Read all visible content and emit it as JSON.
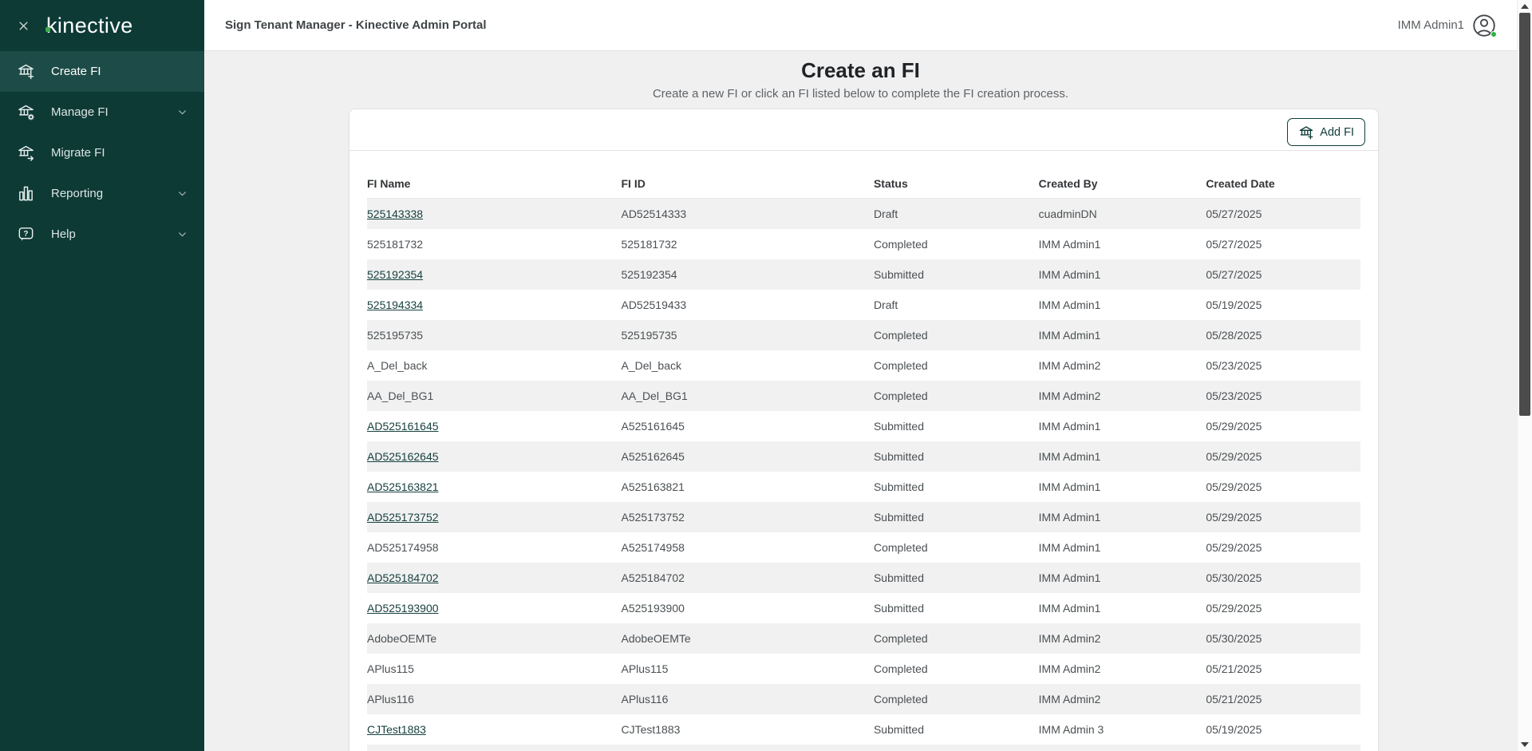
{
  "colors": {
    "sidebar_bg": "#0e3a36",
    "sidebar_active_bg": "#1d4b47",
    "accent_green": "#3dae4a",
    "presence_green": "#2fb344",
    "button_teal": "#0f3d3a",
    "link_color": "#17413e",
    "row_alt_bg": "#f1f1f1"
  },
  "sidebar": {
    "logo_text": "kinective",
    "close_icon": "close-icon",
    "items": [
      {
        "label": "Create FI",
        "icon": "bank-plus-icon",
        "active": true,
        "chevron": false
      },
      {
        "label": "Manage FI",
        "icon": "bank-gear-icon",
        "active": false,
        "chevron": true
      },
      {
        "label": "Migrate FI",
        "icon": "bank-arrow-icon",
        "active": false,
        "chevron": false
      },
      {
        "label": "Reporting",
        "icon": "bar-chart-icon",
        "active": false,
        "chevron": true
      },
      {
        "label": "Help",
        "icon": "help-bubble-icon",
        "active": false,
        "chevron": true
      }
    ]
  },
  "topbar": {
    "title": "Sign Tenant Manager - Kinective Admin Portal",
    "user_name": "IMM Admin1",
    "user_icon": "profile-icon"
  },
  "page": {
    "title": "Create an FI",
    "subtitle": "Create a new FI or click an FI listed below to complete the FI creation process.",
    "add_button_label": "Add FI",
    "add_button_icon": "bank-plus-icon"
  },
  "table": {
    "headers": [
      "FI Name",
      "FI ID",
      "Status",
      "Created By",
      "Created Date"
    ],
    "rows": [
      {
        "fi_name": "525143338",
        "link": true,
        "fi_id": "AD52514333",
        "status": "Draft",
        "created_by": "cuadminDN",
        "created_date": "05/27/2025"
      },
      {
        "fi_name": "525181732",
        "link": false,
        "fi_id": "525181732",
        "status": "Completed",
        "created_by": "IMM Admin1",
        "created_date": "05/27/2025"
      },
      {
        "fi_name": "525192354",
        "link": true,
        "fi_id": "525192354",
        "status": "Submitted",
        "created_by": "IMM Admin1",
        "created_date": "05/27/2025"
      },
      {
        "fi_name": "525194334",
        "link": true,
        "fi_id": "AD52519433",
        "status": "Draft",
        "created_by": "IMM Admin1",
        "created_date": "05/19/2025"
      },
      {
        "fi_name": "525195735",
        "link": false,
        "fi_id": "525195735",
        "status": "Completed",
        "created_by": "IMM Admin1",
        "created_date": "05/28/2025"
      },
      {
        "fi_name": "A_Del_back",
        "link": false,
        "fi_id": "A_Del_back",
        "status": "Completed",
        "created_by": "IMM Admin2",
        "created_date": "05/23/2025"
      },
      {
        "fi_name": "AA_Del_BG1",
        "link": false,
        "fi_id": "AA_Del_BG1",
        "status": "Completed",
        "created_by": "IMM Admin2",
        "created_date": "05/23/2025"
      },
      {
        "fi_name": "AD525161645",
        "link": true,
        "fi_id": "A525161645",
        "status": "Submitted",
        "created_by": "IMM Admin1",
        "created_date": "05/29/2025"
      },
      {
        "fi_name": "AD525162645",
        "link": true,
        "fi_id": "A525162645",
        "status": "Submitted",
        "created_by": "IMM Admin1",
        "created_date": "05/29/2025"
      },
      {
        "fi_name": "AD525163821",
        "link": true,
        "fi_id": "A525163821",
        "status": "Submitted",
        "created_by": "IMM Admin1",
        "created_date": "05/29/2025"
      },
      {
        "fi_name": "AD525173752",
        "link": true,
        "fi_id": "A525173752",
        "status": "Submitted",
        "created_by": "IMM Admin1",
        "created_date": "05/29/2025"
      },
      {
        "fi_name": "AD525174958",
        "link": false,
        "fi_id": "A525174958",
        "status": "Completed",
        "created_by": "IMM Admin1",
        "created_date": "05/29/2025"
      },
      {
        "fi_name": "AD525184702",
        "link": true,
        "fi_id": "A525184702",
        "status": "Submitted",
        "created_by": "IMM Admin1",
        "created_date": "05/30/2025"
      },
      {
        "fi_name": "AD525193900",
        "link": true,
        "fi_id": "A525193900",
        "status": "Submitted",
        "created_by": "IMM Admin1",
        "created_date": "05/29/2025"
      },
      {
        "fi_name": "AdobeOEMTe",
        "link": false,
        "fi_id": "AdobeOEMTe",
        "status": "Completed",
        "created_by": "IMM Admin2",
        "created_date": "05/30/2025"
      },
      {
        "fi_name": "APlus115",
        "link": false,
        "fi_id": "APlus115",
        "status": "Completed",
        "created_by": "IMM Admin2",
        "created_date": "05/21/2025"
      },
      {
        "fi_name": "APlus116",
        "link": false,
        "fi_id": "APlus116",
        "status": "Completed",
        "created_by": "IMM Admin2",
        "created_date": "05/21/2025"
      },
      {
        "fi_name": "CJTest1883",
        "link": true,
        "fi_id": "CJTest1883",
        "status": "Submitted",
        "created_by": "IMM Admin 3",
        "created_date": "05/19/2025"
      }
    ]
  }
}
